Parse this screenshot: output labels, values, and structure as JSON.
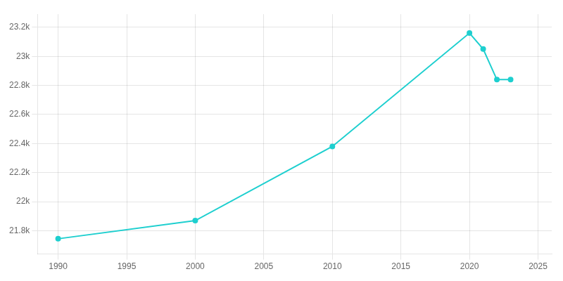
{
  "chart_data": {
    "type": "line",
    "x": [
      1990,
      2000,
      2010,
      2020,
      2021,
      2022,
      2023
    ],
    "values": [
      21745,
      21870,
      22380,
      23160,
      23050,
      22840,
      22840
    ],
    "color": "#1ECFCF",
    "marker": "circle",
    "xlim": [
      1988.5,
      2026
    ],
    "xticks": [
      1990,
      1995,
      2000,
      2005,
      2010,
      2015,
      2020,
      2025
    ],
    "ylim": [
      21640,
      23290
    ],
    "yticks": [
      {
        "value": 21800,
        "label": "21.8k"
      },
      {
        "value": 22000,
        "label": "22k"
      },
      {
        "value": 22200,
        "label": "22.2k"
      },
      {
        "value": 22400,
        "label": "22.4k"
      },
      {
        "value": 22600,
        "label": "22.6k"
      },
      {
        "value": 22800,
        "label": "22.8k"
      },
      {
        "value": 23000,
        "label": "23k"
      },
      {
        "value": 23200,
        "label": "23.2k"
      }
    ],
    "grid": true
  }
}
